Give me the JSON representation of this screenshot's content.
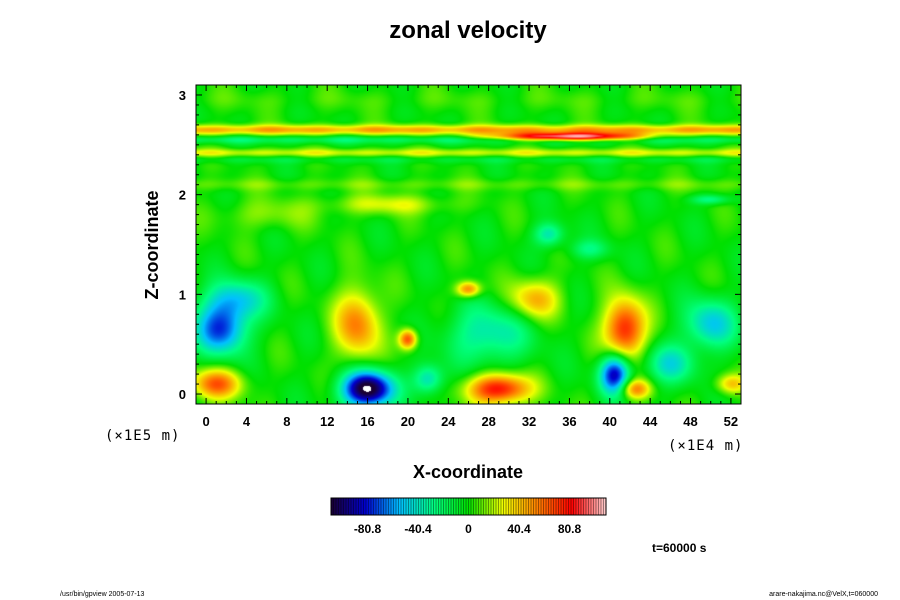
{
  "chart_data": {
    "type": "heatmap",
    "title": "zonal velocity",
    "xlabel": "X-coordinate",
    "ylabel": "Z-coordinate",
    "x_scale_label": "(×1E4 m)",
    "z_scale_label": "(×1E5 m)",
    "xlim": [
      -1,
      53
    ],
    "zlim": [
      -0.1,
      3.1
    ],
    "x_ticks": [
      "0",
      "4",
      "8",
      "12",
      "16",
      "20",
      "24",
      "28",
      "32",
      "36",
      "40",
      "44",
      "48",
      "52"
    ],
    "z_ticks": [
      "0",
      "1",
      "2",
      "3"
    ],
    "colorbar": {
      "range": [
        -110,
        110
      ],
      "ticks": [
        "-80.8",
        "-40.4",
        "0",
        "40.4",
        "80.8"
      ],
      "tick_values": [
        -80.8,
        -40.4,
        0,
        40.4,
        80.8
      ],
      "colors": [
        "#1a0033",
        "#0000d0",
        "#00c0ff",
        "#00ff80",
        "#00e000",
        "#f0ff00",
        "#ff8000",
        "#ff0000",
        "#ffd0d0"
      ]
    },
    "background_value": 0,
    "features": [
      {
        "x": 1.5,
        "z": 0.65,
        "value": -75,
        "sx": 2.5,
        "sz": 0.25
      },
      {
        "x": 3,
        "z": 0.95,
        "value": -45,
        "sx": 3,
        "sz": 0.2
      },
      {
        "x": 1,
        "z": 0.1,
        "value": 60,
        "sx": 2.5,
        "sz": 0.15
      },
      {
        "x": 15,
        "z": 0.7,
        "value": 55,
        "sx": 2.2,
        "sz": 0.35
      },
      {
        "x": 20,
        "z": 0.55,
        "value": 70,
        "sx": 0.9,
        "sz": 0.1
      },
      {
        "x": 16,
        "z": 0.05,
        "value": -120,
        "sx": 2.5,
        "sz": 0.18
      },
      {
        "x": 22,
        "z": 0.15,
        "value": -45,
        "sx": 1.5,
        "sz": 0.15
      },
      {
        "x": 29,
        "z": 0.05,
        "value": 85,
        "sx": 3,
        "sz": 0.15
      },
      {
        "x": 28,
        "z": 0.6,
        "value": -40,
        "sx": 4,
        "sz": 0.3
      },
      {
        "x": 32.5,
        "z": 0.95,
        "value": 45,
        "sx": 2.5,
        "sz": 0.2
      },
      {
        "x": 26,
        "z": 1.05,
        "value": 60,
        "sx": 1.2,
        "sz": 0.08
      },
      {
        "x": 34,
        "z": 1.6,
        "value": -40,
        "sx": 1.5,
        "sz": 0.12
      },
      {
        "x": 38,
        "z": 1.45,
        "value": -25,
        "sx": 2,
        "sz": 0.1
      },
      {
        "x": 41.5,
        "z": 0.65,
        "value": 80,
        "sx": 2,
        "sz": 0.3
      },
      {
        "x": 40.5,
        "z": 0.2,
        "value": -90,
        "sx": 1.5,
        "sz": 0.2
      },
      {
        "x": 42.5,
        "z": 0.05,
        "value": 55,
        "sx": 1.5,
        "sz": 0.1
      },
      {
        "x": 46,
        "z": 0.3,
        "value": -40,
        "sx": 2.5,
        "sz": 0.2
      },
      {
        "x": 50,
        "z": 0.7,
        "value": -50,
        "sx": 2.5,
        "sz": 0.25
      },
      {
        "x": 52,
        "z": 0.1,
        "value": 40,
        "sx": 1.5,
        "sz": 0.1
      },
      {
        "x": 50,
        "z": 1.95,
        "value": -30,
        "sx": 2,
        "sz": 0.05
      },
      {
        "x": 18,
        "z": 1.9,
        "value": 25,
        "sx": 6,
        "sz": 0.1
      },
      {
        "x": 6,
        "z": 1.8,
        "value": 15,
        "sx": 5,
        "sz": 0.15
      }
    ],
    "bands": [
      {
        "z": 2.65,
        "value": 45,
        "sz": 0.05
      },
      {
        "z": 2.55,
        "value": -20,
        "sz": 0.04
      },
      {
        "z": 2.42,
        "value": 25,
        "sz": 0.04
      },
      {
        "z": 2.35,
        "value": -10,
        "sz": 0.04
      },
      {
        "z": 2.1,
        "value": 10,
        "sz": 0.06
      },
      {
        "z": 2.95,
        "value": 5,
        "sz": 0.1
      }
    ],
    "band_jets": [
      {
        "x": 36,
        "z": 2.58,
        "value": 110,
        "sx": 7,
        "sz": 0.04
      }
    ],
    "time_label": "t=60000 s"
  },
  "footer": {
    "left": "/usr/bin/gpview 2005-07-13",
    "right": "arare-nakajima.nc@VelX,t=060000"
  }
}
